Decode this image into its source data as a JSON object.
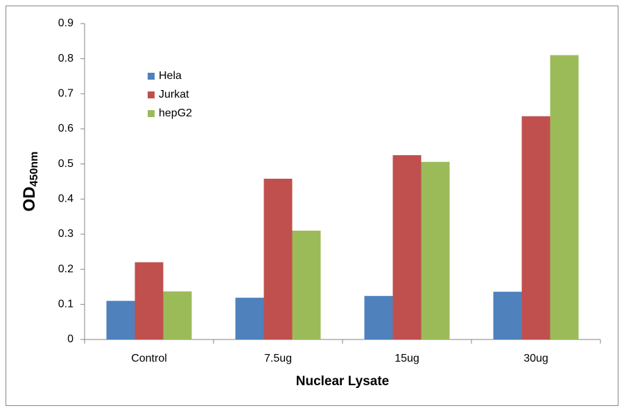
{
  "chart_data": {
    "type": "bar",
    "x_label": "Nuclear Lysate",
    "y_label": "OD",
    "y_label_subscript": "450nm",
    "categories": [
      "Control",
      "7.5ug",
      "15ug",
      "30ug"
    ],
    "series": [
      {
        "name": "Hela",
        "color": "#4f81bd",
        "values": [
          0.11,
          0.119,
          0.124,
          0.136
        ]
      },
      {
        "name": "Jurkat",
        "color": "#c0504d",
        "values": [
          0.22,
          0.458,
          0.525,
          0.636
        ]
      },
      {
        "name": "hepG2",
        "color": "#9bbb59",
        "values": [
          0.137,
          0.31,
          0.506,
          0.81
        ]
      }
    ],
    "ylim": [
      0,
      0.9
    ],
    "yticks": [
      0,
      0.1,
      0.2,
      0.3,
      0.4,
      0.5,
      0.6,
      0.7,
      0.8,
      0.9
    ],
    "grid": false,
    "legend": "upper-left"
  }
}
